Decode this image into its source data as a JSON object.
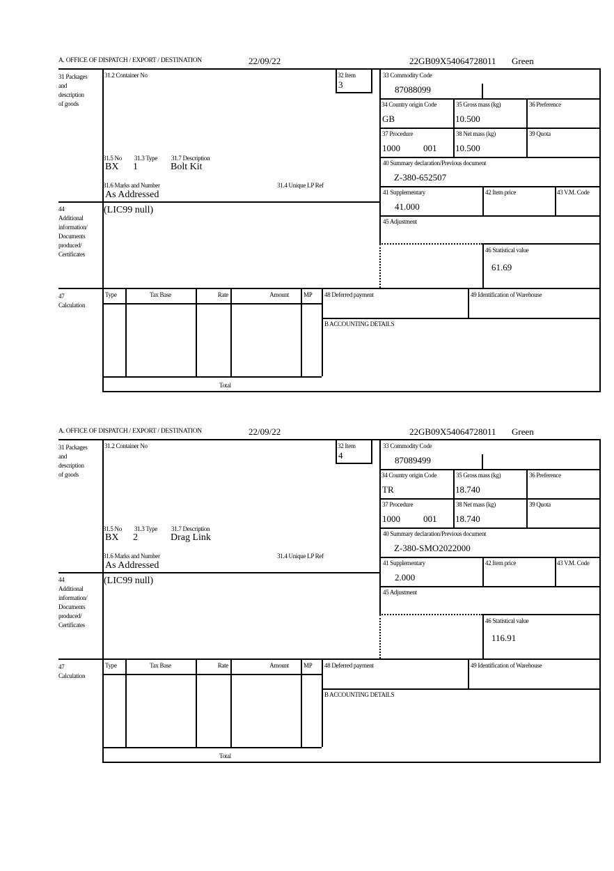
{
  "forms": [
    {
      "header": {
        "office": "A.  OFFICE OF DISPATCH / EXPORT / DESTINATION",
        "date": "22/09/22",
        "reference": "22GB09X54064728011",
        "route": "Green"
      },
      "labels": {
        "packages": [
          "31 Packages",
          "and",
          "description",
          "of goods"
        ],
        "container": "31.2 Container No",
        "item": "32 Item",
        "no": "31.5 No",
        "type": "31.3 Type",
        "description": "31.7 Description",
        "marks": "31.6 Marks and Number",
        "unique_ref": "31.4 Unique LP Ref",
        "additional": [
          "44",
          "Additional",
          "information/",
          "Documents",
          "produced/",
          "Certificates"
        ],
        "commodity": "33 Commodity Code",
        "origin": "34 Country origin Code",
        "gross": "35 Gross mass (kg)",
        "preference": "36 Preference",
        "procedure": "37 Procedure",
        "net": "38 Net mass (kg)",
        "quota": "39 Quota",
        "summary": "40 Summary declaration/Previous document",
        "supplementary": "41 Supplementary",
        "item_price": "42 Item price",
        "vm_code": "43 V.M. Code",
        "adjustment": "45 Adjustment",
        "statistical": "46 Statistical value",
        "calculation": [
          "47",
          "Calculation"
        ],
        "calc_cols": [
          "Type",
          "Tax Base",
          "Rate",
          "Amount",
          "MP"
        ],
        "total": "Total",
        "deferred": "48 Deferred payment",
        "warehouse": "49 Identification of Warehouse",
        "accounting": "B ACCOUNTING DETAILS"
      },
      "values": {
        "item": "3",
        "no": "BX",
        "type": "1",
        "description": "Bolt Kit",
        "marks": "As Addressed",
        "additional": "(LIC99 null)",
        "commodity": "87088099",
        "origin": "GB",
        "gross": "10.500",
        "procedure": "1000",
        "procedure_extra": "001",
        "net": "10.500",
        "summary": "Z-380-652507",
        "supplementary": "41.000",
        "statistical": "61.69"
      }
    },
    {
      "header": {
        "office": "A.  OFFICE OF DISPATCH / EXPORT / DESTINATION",
        "date": "22/09/22",
        "reference": "22GB09X54064728011",
        "route": "Green"
      },
      "labels": {
        "packages": [
          "31 Packages",
          "and",
          "description",
          "of goods"
        ],
        "container": "31.2 Container No",
        "item": "32 Item",
        "no": "31.5 No",
        "type": "31.3 Type",
        "description": "31.7 Description",
        "marks": "31.6 Marks and Number",
        "unique_ref": "31.4 Unique LP Ref",
        "additional": [
          "44",
          "Additional",
          "information/",
          "Documents",
          "produced/",
          "Certificates"
        ],
        "commodity": "33 Commodity Code",
        "origin": "34 Country origin Code",
        "gross": "35 Gross mass (kg)",
        "preference": "36 Preference",
        "procedure": "37 Procedure",
        "net": "38 Net mass (kg)",
        "quota": "39 Quota",
        "summary": "40 Summary declaration/Previous document",
        "supplementary": "41 Supplementary",
        "item_price": "42 Item price",
        "vm_code": "43 V.M. Code",
        "adjustment": "45 Adjustment",
        "statistical": "46 Statistical value",
        "calculation": [
          "47",
          "Calculation"
        ],
        "calc_cols": [
          "Type",
          "Tax Base",
          "Rate",
          "Amount",
          "MP"
        ],
        "total": "Total",
        "deferred": "48 Deferred payment",
        "warehouse": "49 Identification of Warehouse",
        "accounting": "B ACCOUNTING DETAILS"
      },
      "values": {
        "item": "4",
        "no": "BX",
        "type": "2",
        "description": "Drag Link",
        "marks": "As Addressed",
        "additional": "(LIC99 null)",
        "commodity": "87089499",
        "origin": "TR",
        "gross": "18.740",
        "procedure": "1000",
        "procedure_extra": "001",
        "net": "18.740",
        "summary": "Z-380-SMO2022000",
        "supplementary": "2.000",
        "statistical": "116.91"
      }
    }
  ]
}
